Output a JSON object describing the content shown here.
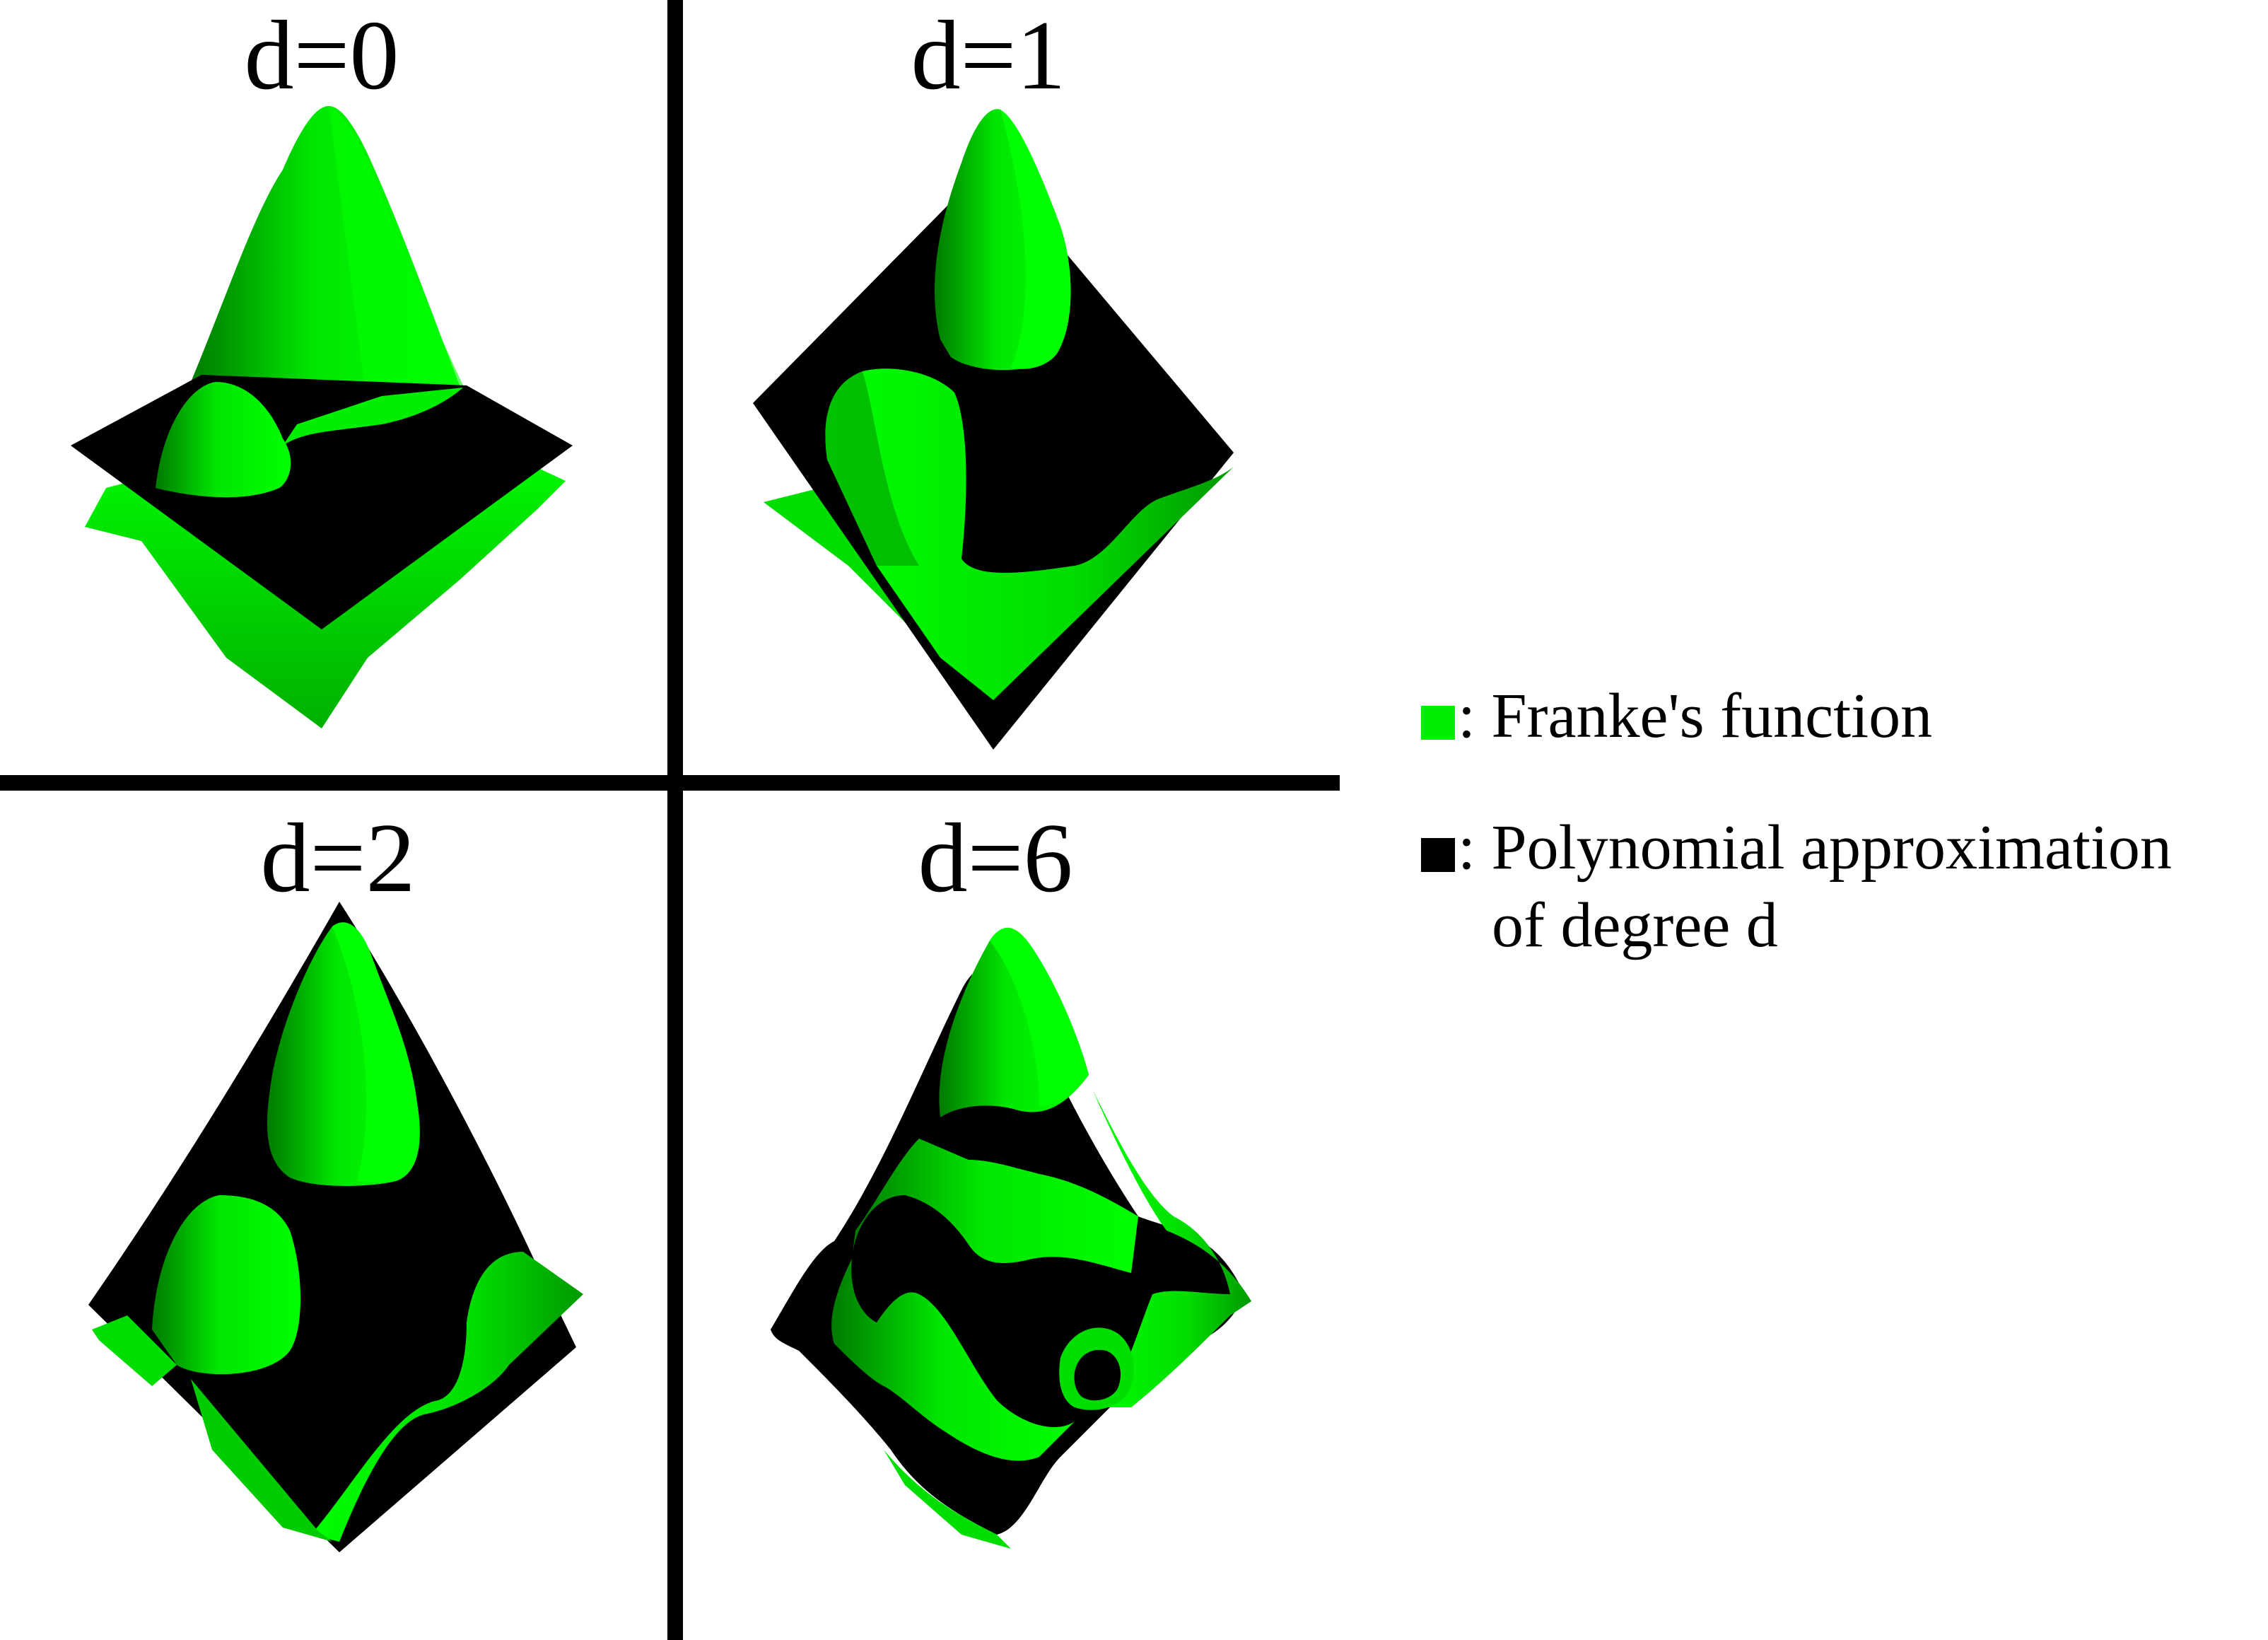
{
  "panels": [
    {
      "id": "d0",
      "title": "d=0"
    },
    {
      "id": "d1",
      "title": "d=1"
    },
    {
      "id": "d2",
      "title": "d=2"
    },
    {
      "id": "d6",
      "title": "d=6"
    }
  ],
  "legend": {
    "items": [
      {
        "marker_color": "#00ee00",
        "label": ": Franke's function",
        "label_cont": ""
      },
      {
        "marker_color": "#000000",
        "label": ": Polynomial approximation",
        "label_cont": "of degree d"
      }
    ]
  },
  "colors": {
    "surface_green": "#00ee00",
    "surface_green_dark": "#00a000",
    "approximation": "#000000",
    "divider": "#000000",
    "background": "#ffffff"
  }
}
